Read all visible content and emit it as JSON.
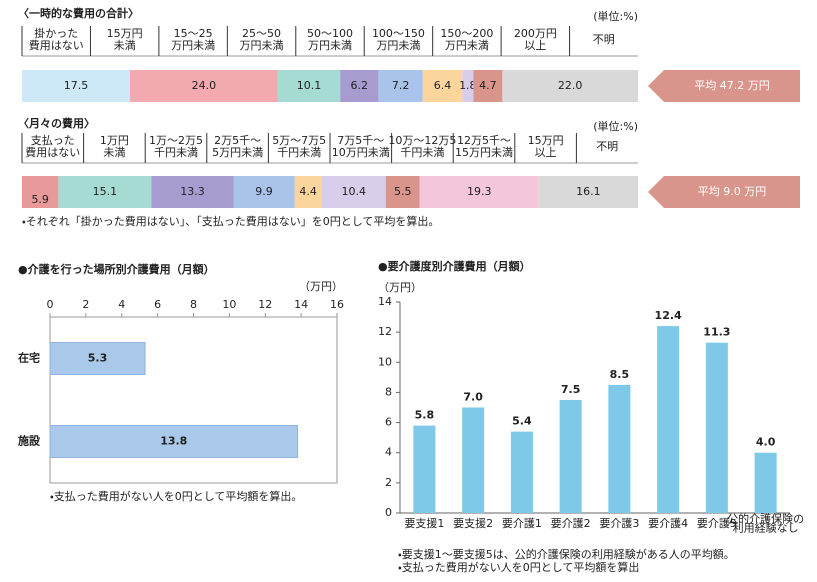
{
  "chart_data": [
    {
      "type": "stacked-bar",
      "title": "〈一時的な費用の合計〉",
      "unit": "(単位:%)",
      "categories": [
        [
          "掛かった",
          "費用はない"
        ],
        [
          "15万円",
          "未満"
        ],
        [
          "15～25",
          "万円未満"
        ],
        [
          "25～50",
          "万円未満"
        ],
        [
          "50～100",
          "万円未満"
        ],
        [
          "100～150",
          "万円未満"
        ],
        [
          "150～200",
          "万円未満"
        ],
        [
          "200万円",
          "以上"
        ],
        [
          "不明"
        ]
      ],
      "values": [
        17.5,
        24.0,
        10.1,
        6.2,
        7.2,
        6.4,
        1.8,
        4.7,
        22.0
      ],
      "value_labels": [
        "17.5",
        "24.0",
        "10.1",
        "6.2",
        "7.2",
        "6.4",
        "1.8",
        "4.7",
        "22.0"
      ],
      "colors": [
        "#cde8f7",
        "#f2aab0",
        "#a5dbd3",
        "#a89bd0",
        "#a9c3ea",
        "#fbd59c",
        "#d8cdea",
        "#d9958c",
        "#d9d9d9"
      ],
      "average": "平均 47.2 万円"
    },
    {
      "type": "stacked-bar",
      "title": "〈月々の費用〉",
      "unit": "(単位:%)",
      "categories": [
        [
          "支払った",
          "費用はない"
        ],
        [
          "1万円",
          "未満"
        ],
        [
          "1万～2万5",
          "千円未満"
        ],
        [
          "2万5千～",
          "5万円未満"
        ],
        [
          "5万～7万5",
          "千円未満"
        ],
        [
          "7万5千～",
          "10万円未満"
        ],
        [
          "10万～12万5",
          "千円未満"
        ],
        [
          "12万5千～",
          "15万円未満"
        ],
        [
          "15万円",
          "以上"
        ],
        [
          "不明"
        ]
      ],
      "values": [
        0.0,
        5.9,
        15.1,
        13.3,
        9.9,
        4.4,
        10.4,
        5.5,
        19.3,
        16.1
      ],
      "value_labels": [
        "-0.0",
        "5.9",
        "15.1",
        "13.3",
        "9.9",
        "4.4",
        "10.4",
        "5.5",
        "19.3",
        "16.1"
      ],
      "colors": [
        "#cde8f7",
        "#e89a9a",
        "#a5dbd3",
        "#a89bd0",
        "#a9c3ea",
        "#fbd59c",
        "#d8cdea",
        "#d9958c",
        "#f4c6dc",
        "#d9d9d9"
      ],
      "average": "平均 9.0 万円",
      "notes": [
        "・それぞれ「掛かった費用はない」、「支払った費用はない」を0円として平均を算出。"
      ]
    },
    {
      "type": "bar-h",
      "title": "●介護を行った場所別介護費用（月額）",
      "unit": "（万円）",
      "categories": [
        "在宅",
        "施設"
      ],
      "values": [
        5.3,
        13.8
      ],
      "color": "#a9c8ea",
      "xlim": [
        0,
        16
      ],
      "xticks": [
        0,
        2,
        4,
        6,
        8,
        10,
        12,
        14,
        16
      ],
      "grid": false,
      "notes": [
        "・支払った費用がない人を0円として平均額を算出。"
      ]
    },
    {
      "type": "bar",
      "title": "●要介護度別介護費用（月額）",
      "unit": "（万円）",
      "categories": [
        "要支援1",
        "要支援2",
        "要介護1",
        "要介護2",
        "要介護3",
        "要介護4",
        "要介護5",
        [
          "公的介護保険の",
          "利用経験なし"
        ]
      ],
      "values": [
        5.8,
        7.0,
        5.4,
        7.5,
        8.5,
        12.4,
        11.3,
        4.0
      ],
      "value_labels": [
        "5.8",
        "7.0",
        "5.4",
        "7.5",
        "8.5",
        "12.4",
        "11.3",
        "4.0"
      ],
      "color": "#7ec8e8",
      "ylim": [
        0,
        14
      ],
      "yticks": [
        0,
        2,
        4,
        6,
        8,
        10,
        12,
        14
      ],
      "grid": false,
      "notes": [
        "・要支援1～要支援5は、公的介護保険の利用経験がある人の平均額。",
        "・支払った費用がない人を0円として平均額を算出"
      ]
    }
  ]
}
